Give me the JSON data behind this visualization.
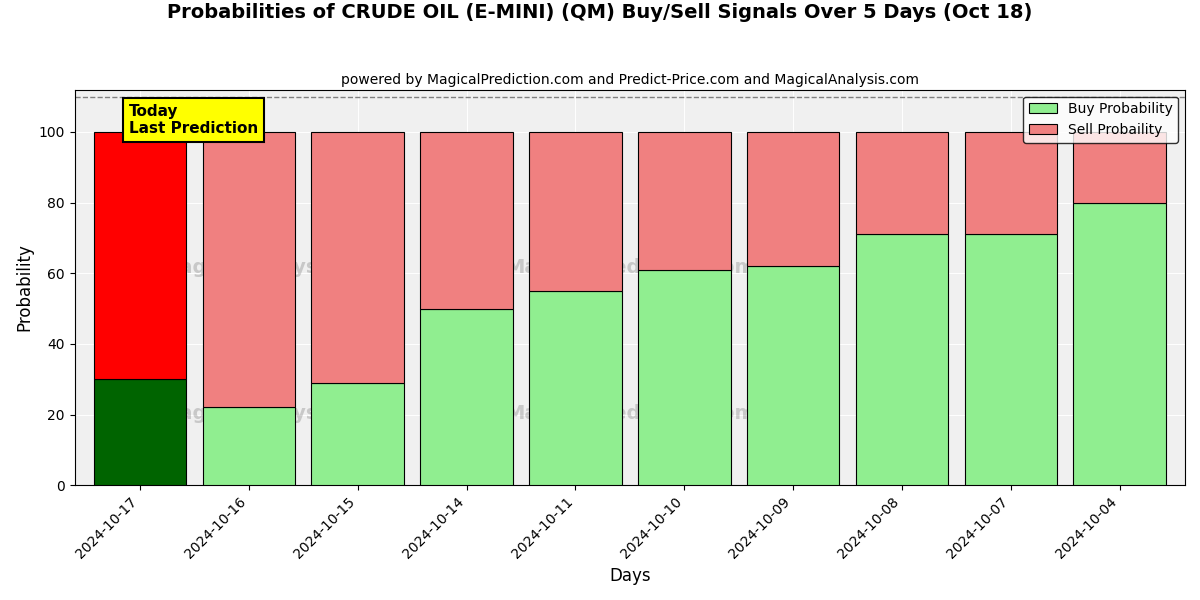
{
  "title": "Probabilities of CRUDE OIL (E-MINI) (QM) Buy/Sell Signals Over 5 Days (Oct 18)",
  "subtitle": "powered by MagicalPrediction.com and Predict-Price.com and MagicalAnalysis.com",
  "xlabel": "Days",
  "ylabel": "Probability",
  "categories": [
    "2024-10-17",
    "2024-10-16",
    "2024-10-15",
    "2024-10-14",
    "2024-10-11",
    "2024-10-10",
    "2024-10-09",
    "2024-10-08",
    "2024-10-07",
    "2024-10-04"
  ],
  "buy_values": [
    30,
    22,
    29,
    50,
    55,
    61,
    62,
    71,
    71,
    80
  ],
  "sell_values": [
    70,
    78,
    71,
    50,
    45,
    39,
    38,
    29,
    29,
    20
  ],
  "today_index": 0,
  "today_buy_color": "#006400",
  "today_sell_color": "#ff0000",
  "buy_color": "#90EE90",
  "sell_color": "#F08080",
  "today_label_bg": "#ffff00",
  "today_label_text": "Today\nLast Prediction",
  "legend_buy": "Buy Probability",
  "legend_sell": "Sell Probaility",
  "ylim": [
    0,
    112
  ],
  "yticks": [
    0,
    20,
    40,
    60,
    80,
    100
  ],
  "dashed_line_y": 110,
  "bar_edge_color": "#000000",
  "bar_linewidth": 0.8,
  "bar_width": 0.85,
  "bg_color": "#f0f0f0",
  "watermark_color": "#c0c0c0",
  "watermark_alpha": 0.6
}
